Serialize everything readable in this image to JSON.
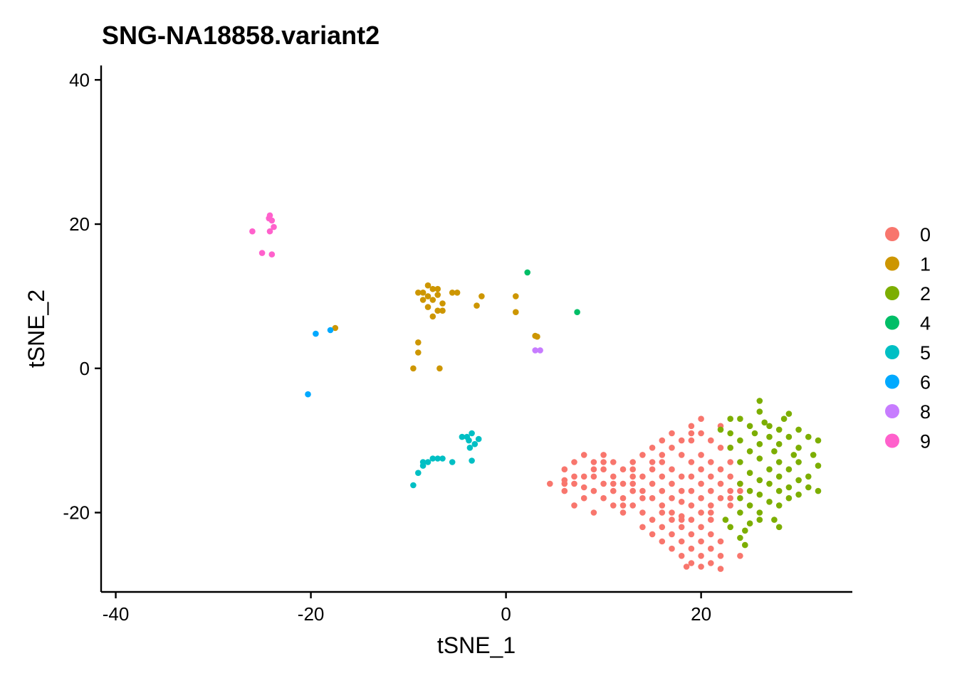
{
  "chart_data": {
    "type": "scatter",
    "title": "SNG-NA18858.variant2",
    "xlabel": "tSNE_1",
    "ylabel": "tSNE_2",
    "xlim": [
      -41.5,
      35.5
    ],
    "ylim": [
      -31,
      42
    ],
    "xticks": [
      -40,
      -20,
      0,
      20
    ],
    "yticks": [
      -20,
      0,
      20,
      40
    ],
    "grid": false,
    "legend_position": "right",
    "series": [
      {
        "name": "0",
        "color": "#F8766D",
        "points": [
          [
            20,
            -7
          ],
          [
            22,
            -8
          ],
          [
            19,
            -8
          ],
          [
            19,
            -9
          ],
          [
            18,
            -10
          ],
          [
            21,
            -10
          ],
          [
            23,
            -11
          ],
          [
            15,
            -11
          ],
          [
            17,
            -11
          ],
          [
            20,
            -12
          ],
          [
            16,
            -12
          ],
          [
            18,
            -12
          ],
          [
            14,
            -12
          ],
          [
            8,
            -12
          ],
          [
            10,
            -12
          ],
          [
            19,
            -13
          ],
          [
            21,
            -13
          ],
          [
            16,
            -13
          ],
          [
            13,
            -13
          ],
          [
            11,
            -13
          ],
          [
            9,
            -13
          ],
          [
            7,
            -13
          ],
          [
            23,
            -13
          ],
          [
            15,
            -14
          ],
          [
            17,
            -14
          ],
          [
            20,
            -14
          ],
          [
            10,
            -14
          ],
          [
            12,
            -14
          ],
          [
            22,
            -14
          ],
          [
            6,
            -14
          ],
          [
            8,
            -15
          ],
          [
            14,
            -15
          ],
          [
            16,
            -15
          ],
          [
            18,
            -15
          ],
          [
            21,
            -15
          ],
          [
            11,
            -15
          ],
          [
            13,
            -15
          ],
          [
            19,
            -15
          ],
          [
            9,
            -15
          ],
          [
            23,
            -15
          ],
          [
            6,
            -16
          ],
          [
            7,
            -16
          ],
          [
            10,
            -16
          ],
          [
            12,
            -16
          ],
          [
            15,
            -16
          ],
          [
            17,
            -16
          ],
          [
            20,
            -16
          ],
          [
            22,
            -16
          ],
          [
            24,
            -16
          ],
          [
            4.5,
            -16
          ],
          [
            8,
            -16.5
          ],
          [
            11,
            -17
          ],
          [
            13,
            -17
          ],
          [
            16,
            -17
          ],
          [
            18,
            -17
          ],
          [
            21,
            -17
          ],
          [
            23,
            -17
          ],
          [
            9,
            -17
          ],
          [
            14,
            -17
          ],
          [
            19,
            -17
          ],
          [
            6,
            -17
          ],
          [
            12,
            -18
          ],
          [
            15,
            -18
          ],
          [
            17,
            -18
          ],
          [
            20,
            -18
          ],
          [
            22,
            -18
          ],
          [
            10,
            -18
          ],
          [
            8,
            -18
          ],
          [
            18,
            -18.5
          ],
          [
            13,
            -19
          ],
          [
            16,
            -19
          ],
          [
            19,
            -19
          ],
          [
            21,
            -19
          ],
          [
            23,
            -19
          ],
          [
            7,
            -19
          ],
          [
            11,
            -19
          ],
          [
            14,
            -20
          ],
          [
            17,
            -20
          ],
          [
            20,
            -20
          ],
          [
            9,
            -20
          ],
          [
            12,
            -20
          ],
          [
            18,
            -20.5
          ],
          [
            15,
            -21
          ],
          [
            17,
            -21
          ],
          [
            19,
            -21
          ],
          [
            21,
            -21
          ],
          [
            16,
            -22
          ],
          [
            18,
            -22
          ],
          [
            20,
            -22
          ],
          [
            14,
            -22
          ],
          [
            17,
            -23
          ],
          [
            19,
            -23
          ],
          [
            21,
            -23
          ],
          [
            15,
            -23
          ],
          [
            16,
            -24
          ],
          [
            18,
            -24
          ],
          [
            20,
            -24
          ],
          [
            22,
            -24
          ],
          [
            17,
            -25
          ],
          [
            19,
            -25
          ],
          [
            21,
            -25
          ],
          [
            18,
            -26
          ],
          [
            20,
            -26
          ],
          [
            22,
            -26
          ],
          [
            24,
            -26
          ],
          [
            19,
            -27
          ],
          [
            21,
            -27
          ],
          [
            20,
            -27.5
          ],
          [
            18.5,
            -27.5
          ],
          [
            22,
            -27.8
          ],
          [
            12,
            -19
          ],
          [
            13,
            -16
          ],
          [
            14,
            -18
          ],
          [
            10,
            -13
          ],
          [
            11,
            -16
          ],
          [
            24,
            -17
          ],
          [
            23,
            -18
          ],
          [
            21,
            -20
          ],
          [
            19,
            -10
          ],
          [
            17,
            -9
          ],
          [
            16,
            -10
          ],
          [
            22,
            -11
          ],
          [
            20,
            -9
          ],
          [
            15,
            -13
          ],
          [
            13,
            -14
          ],
          [
            9,
            -14
          ],
          [
            7,
            -15
          ],
          [
            6,
            -15.5
          ],
          [
            16,
            -20
          ],
          [
            18,
            -21
          ]
        ]
      },
      {
        "name": "1",
        "color": "#CD9600",
        "points": [
          [
            -8,
            11.5
          ],
          [
            -7.5,
            11
          ],
          [
            -7,
            11
          ],
          [
            -8.5,
            10.5
          ],
          [
            -9,
            10.5
          ],
          [
            -8,
            10
          ],
          [
            -7,
            10.2
          ],
          [
            -5.5,
            10.5
          ],
          [
            -5,
            10.5
          ],
          [
            -2.5,
            10
          ],
          [
            1,
            10
          ],
          [
            -8.5,
            9.5
          ],
          [
            -7.5,
            9.5
          ],
          [
            -6.5,
            9
          ],
          [
            -3,
            8.7
          ],
          [
            -8,
            8.5
          ],
          [
            -7,
            8
          ],
          [
            -6.5,
            8
          ],
          [
            1,
            7.8
          ],
          [
            -7.5,
            7.2
          ],
          [
            -17.5,
            5.6
          ],
          [
            -9,
            3.6
          ],
          [
            -9,
            2.2
          ],
          [
            3,
            4.5
          ],
          [
            3.2,
            4.4
          ],
          [
            -9.5,
            0
          ],
          [
            -6.8,
            0
          ]
        ]
      },
      {
        "name": "2",
        "color": "#7CAE00",
        "points": [
          [
            26,
            -4.5
          ],
          [
            26,
            -6
          ],
          [
            29,
            -6.3
          ],
          [
            28.5,
            -7
          ],
          [
            23,
            -7
          ],
          [
            24,
            -7
          ],
          [
            26.5,
            -7.5
          ],
          [
            27,
            -8
          ],
          [
            25,
            -8
          ],
          [
            28,
            -8.5
          ],
          [
            30,
            -8.5
          ],
          [
            22,
            -8.5
          ],
          [
            23,
            -9
          ],
          [
            25.5,
            -9
          ],
          [
            27,
            -9.5
          ],
          [
            29,
            -9.5
          ],
          [
            31,
            -9.5
          ],
          [
            32,
            -10
          ],
          [
            24,
            -10
          ],
          [
            26,
            -10.5
          ],
          [
            28,
            -10.5
          ],
          [
            30,
            -11
          ],
          [
            23,
            -11
          ],
          [
            25,
            -11.5
          ],
          [
            27.5,
            -11.5
          ],
          [
            29.5,
            -12
          ],
          [
            31.5,
            -12
          ],
          [
            26,
            -12.5
          ],
          [
            28,
            -13
          ],
          [
            30,
            -13
          ],
          [
            24,
            -13
          ],
          [
            32,
            -13.5
          ],
          [
            27,
            -14
          ],
          [
            29,
            -14
          ],
          [
            25,
            -14.5
          ],
          [
            31,
            -15
          ],
          [
            28,
            -15
          ],
          [
            26,
            -15.5
          ],
          [
            30,
            -15.5
          ],
          [
            24,
            -16
          ],
          [
            27,
            -16
          ],
          [
            29,
            -16.5
          ],
          [
            31,
            -16.5
          ],
          [
            32,
            -17
          ],
          [
            25,
            -17
          ],
          [
            28,
            -17
          ],
          [
            26,
            -17.5
          ],
          [
            30,
            -17.5
          ],
          [
            24,
            -18
          ],
          [
            29,
            -18
          ],
          [
            27,
            -18.5
          ],
          [
            25,
            -19
          ],
          [
            28,
            -19
          ],
          [
            24,
            -20
          ],
          [
            26,
            -20
          ],
          [
            26,
            -21
          ],
          [
            25,
            -21.5
          ],
          [
            27.5,
            -21
          ],
          [
            28,
            -22
          ],
          [
            24.5,
            -22.5
          ],
          [
            23,
            -22
          ],
          [
            24,
            -23.5
          ],
          [
            24.5,
            -24.5
          ],
          [
            22.5,
            -21
          ]
        ]
      },
      {
        "name": "4",
        "color": "#00BE67",
        "points": [
          [
            2.2,
            13.3
          ],
          [
            7.3,
            7.8
          ]
        ]
      },
      {
        "name": "5",
        "color": "#00BFC4",
        "points": [
          [
            -3.5,
            -9
          ],
          [
            -4,
            -9.5
          ],
          [
            -4.5,
            -9.5
          ],
          [
            -3.8,
            -10
          ],
          [
            -3.2,
            -10.5
          ],
          [
            -3.7,
            -11
          ],
          [
            -6.5,
            -12.5
          ],
          [
            -7,
            -12.5
          ],
          [
            -7.5,
            -12.5
          ],
          [
            -8,
            -13
          ],
          [
            -8.5,
            -13
          ],
          [
            -5.5,
            -13
          ],
          [
            -3.5,
            -12.8
          ],
          [
            -8.5,
            -13.5
          ],
          [
            -9,
            -14.5
          ],
          [
            -9.5,
            -16.2
          ],
          [
            -2.8,
            -9.8
          ]
        ]
      },
      {
        "name": "6",
        "color": "#00A9FF",
        "points": [
          [
            -19.5,
            4.8
          ],
          [
            -18,
            5.3
          ],
          [
            -20.3,
            -3.6
          ]
        ]
      },
      {
        "name": "8",
        "color": "#C77CFF",
        "points": [
          [
            3,
            2.5
          ],
          [
            3.5,
            2.5
          ]
        ]
      },
      {
        "name": "9",
        "color": "#FF61CC",
        "points": [
          [
            -24.2,
            21.2
          ],
          [
            -24.3,
            20.8
          ],
          [
            -24,
            20.5
          ],
          [
            -23.8,
            19.6
          ],
          [
            -26,
            19
          ],
          [
            -24.2,
            19
          ],
          [
            -25,
            16
          ],
          [
            -24,
            15.8
          ]
        ]
      }
    ]
  }
}
